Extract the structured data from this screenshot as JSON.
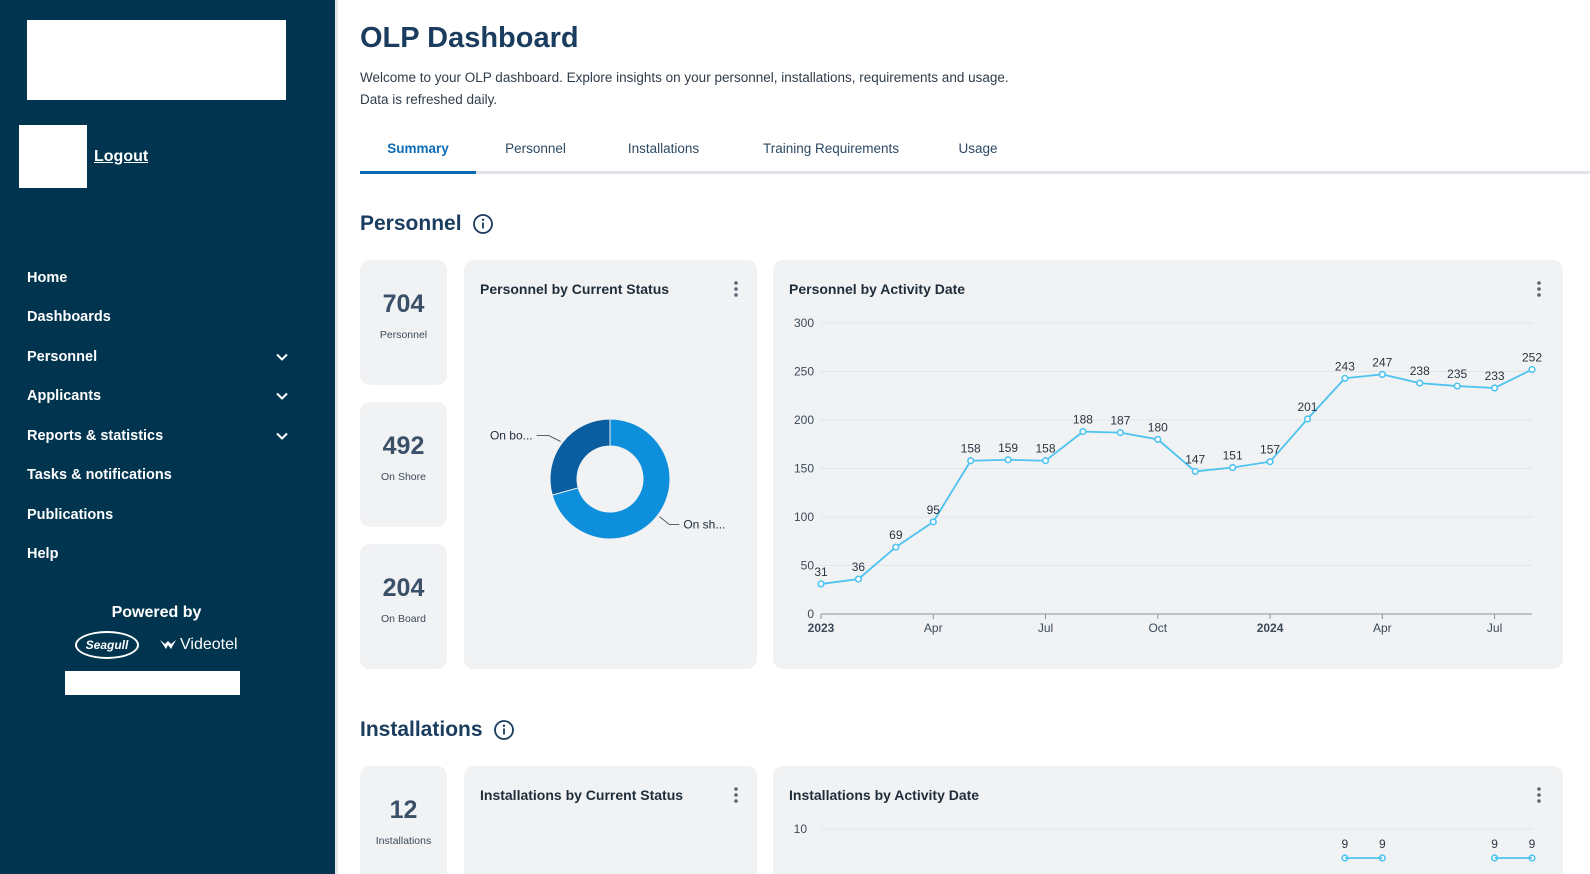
{
  "sidebar": {
    "logout": "Logout",
    "nav": [
      {
        "label": "Home",
        "has_children": false
      },
      {
        "label": "Dashboards",
        "has_children": false
      },
      {
        "label": "Personnel",
        "has_children": true
      },
      {
        "label": "Applicants",
        "has_children": true
      },
      {
        "label": "Reports & statistics",
        "has_children": true
      },
      {
        "label": "Tasks & notifications",
        "has_children": false
      },
      {
        "label": "Publications",
        "has_children": false
      },
      {
        "label": "Help",
        "has_children": false
      }
    ],
    "powered_by": "Powered by",
    "brand_seagull": "Seagull",
    "brand_videotel": "Videotel"
  },
  "page": {
    "title": "OLP Dashboard",
    "intro_line1": "Welcome to your OLP dashboard. Explore insights on your personnel, installations, requirements and usage.",
    "intro_line2": "Data is refreshed daily."
  },
  "tabs": [
    {
      "label": "Summary",
      "active": true
    },
    {
      "label": "Personnel",
      "active": false
    },
    {
      "label": "Installations",
      "active": false
    },
    {
      "label": "Training Requirements",
      "active": false
    },
    {
      "label": "Usage",
      "active": false
    }
  ],
  "personnel": {
    "section_title": "Personnel",
    "kpis": [
      {
        "value": "704",
        "label": "Personnel"
      },
      {
        "value": "492",
        "label": "On Shore"
      },
      {
        "value": "204",
        "label": "On Board"
      }
    ],
    "status_card_title": "Personnel by Current Status",
    "activity_card_title": "Personnel by Activity Date"
  },
  "installations": {
    "section_title": "Installations",
    "kpi": {
      "value": "12",
      "label": "Installations"
    },
    "status_card_title": "Installations by Current Status",
    "activity_card_title": "Installations by Activity Date"
  },
  "colors": {
    "sidebar_bg": "#00344f",
    "accent": "#0b6bb5",
    "line": "#4dc3f0",
    "donut_onshore": "#0d8fdc",
    "donut_onboard": "#0a5d9e"
  },
  "chart_data": [
    {
      "type": "pie",
      "variant": "donut",
      "labels": [
        "On bo...",
        "On sh..."
      ],
      "values": [
        204,
        492
      ],
      "colors": [
        "#0a5d9e",
        "#0d8fdc"
      ]
    },
    {
      "type": "line",
      "x": [
        "2023-01",
        "2023-02",
        "2023-03",
        "2023-04",
        "2023-05",
        "2023-06",
        "2023-07",
        "2023-08",
        "2023-09",
        "2023-10",
        "2023-11",
        "2023-12",
        "2024-01",
        "2024-02",
        "2024-03",
        "2024-04",
        "2024-05",
        "2024-06",
        "2024-07",
        "2024-08"
      ],
      "values": [
        31,
        36,
        69,
        95,
        158,
        159,
        158,
        188,
        187,
        180,
        147,
        151,
        157,
        201,
        243,
        247,
        238,
        235,
        233,
        252
      ],
      "x_ticks": [
        {
          "index": 0,
          "label": "2023",
          "bold": true
        },
        {
          "index": 3,
          "label": "Apr",
          "bold": false
        },
        {
          "index": 6,
          "label": "Jul",
          "bold": false
        },
        {
          "index": 9,
          "label": "Oct",
          "bold": false
        },
        {
          "index": 12,
          "label": "2024",
          "bold": true
        },
        {
          "index": 15,
          "label": "Apr",
          "bold": false
        },
        {
          "index": 18,
          "label": "Jul",
          "bold": false
        }
      ],
      "y_ticks": [
        0,
        50,
        100,
        150,
        200,
        250,
        300
      ],
      "ylim": [
        0,
        300
      ],
      "grid": true,
      "data_labels": true
    },
    {
      "type": "line",
      "y_ticks": [
        10
      ],
      "visible_labels": [
        {
          "index": 14,
          "value": 9
        },
        {
          "index": 15,
          "value": 9
        },
        {
          "index": 18,
          "value": 9
        },
        {
          "index": 19,
          "value": 9
        }
      ]
    }
  ]
}
